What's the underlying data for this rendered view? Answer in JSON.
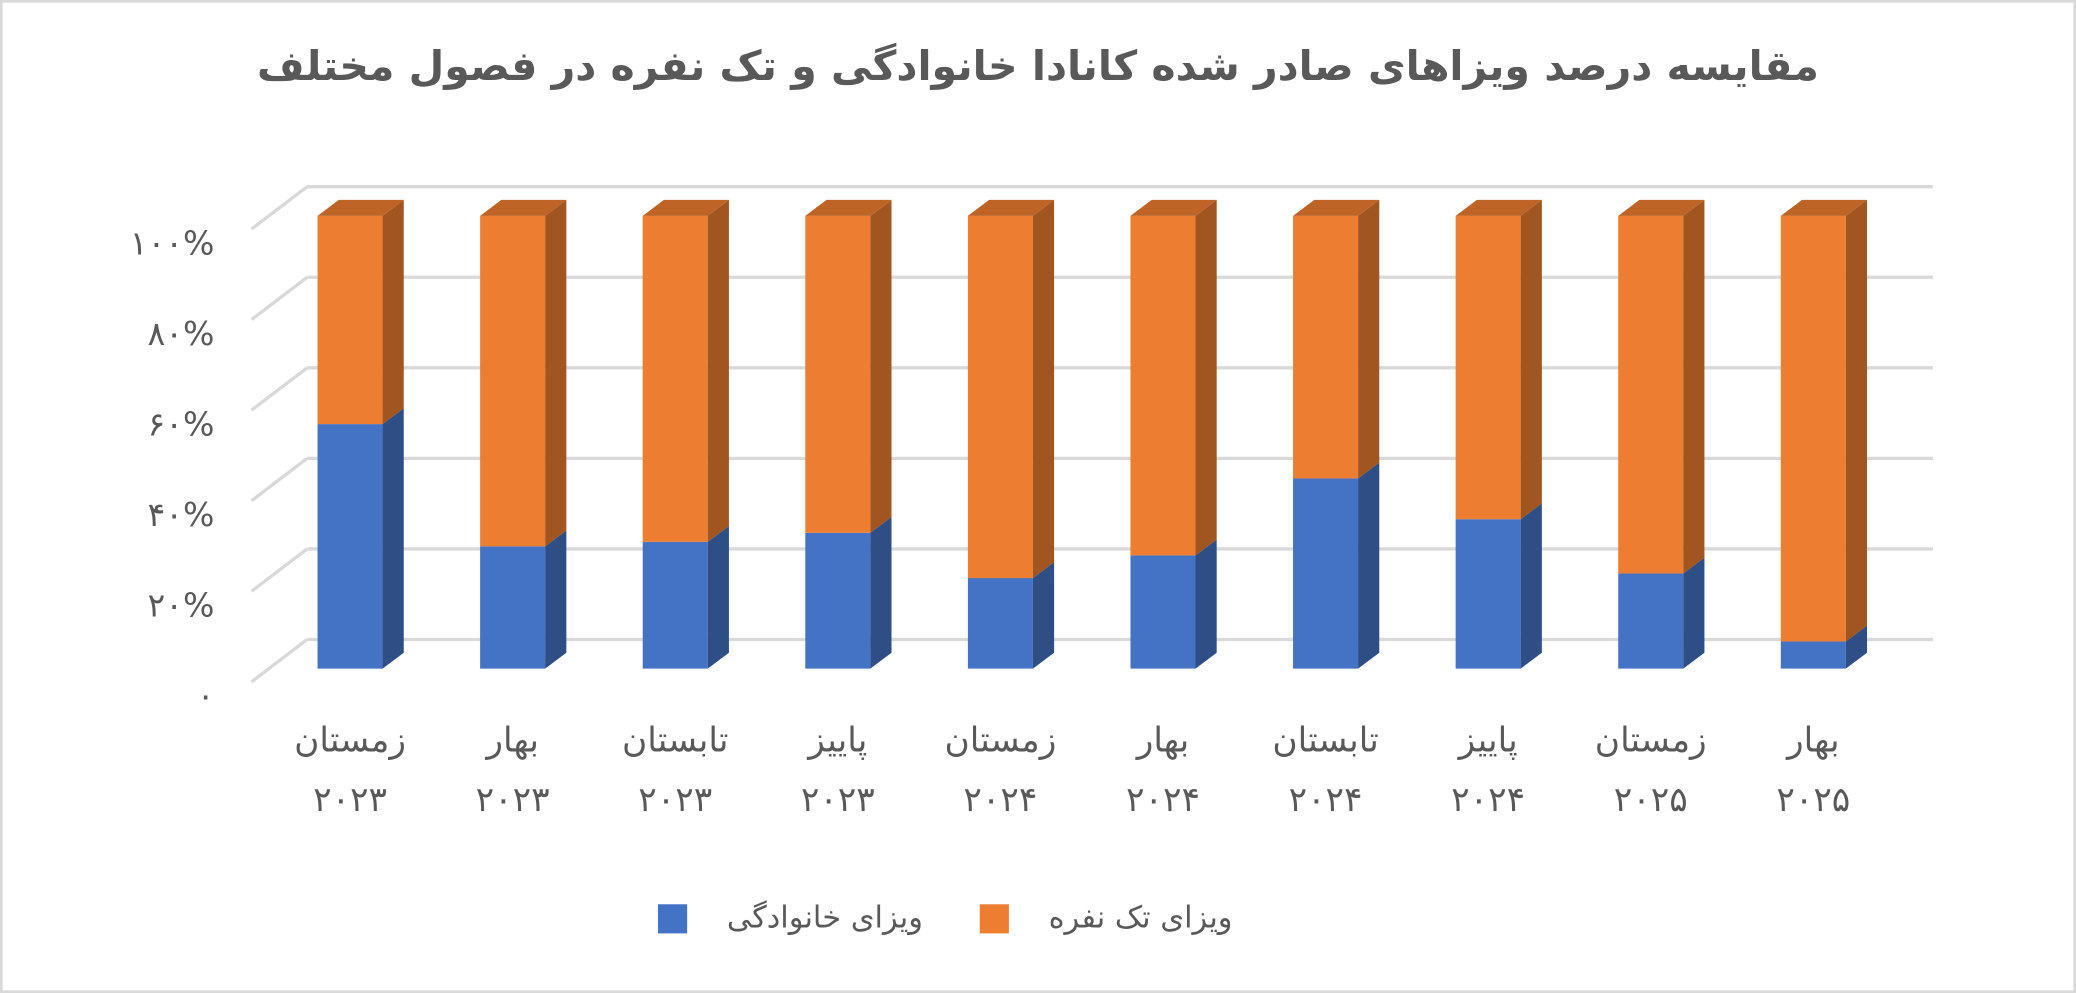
{
  "chart_data": {
    "type": "bar",
    "stacked": true,
    "title": "مقایسه درصد ویزاهای صادر شده کانادا خانوادگی و تک نفره در فصول مختلف",
    "categories": [
      "زمستان ۲۰۲۳",
      "بهار ۲۰۲۳",
      "تابستان ۲۰۲۳",
      "پاییز ۲۰۲۳",
      "زمستان ۲۰۲۴",
      "بهار ۲۰۲۴",
      "تابستان ۲۰۲۴",
      "پاییز ۲۰۲۴",
      "زمستان ۲۰۲۵",
      "بهار ۲۰۲۵"
    ],
    "series": [
      {
        "name": "ویزای خانوادگی",
        "color": "#4472c4",
        "values": [
          54,
          27,
          28,
          30,
          20,
          25,
          42,
          33,
          21,
          6
        ]
      },
      {
        "name": "ویزای تک نفره",
        "color": "#ed7d31",
        "values": [
          46,
          73,
          72,
          70,
          80,
          75,
          58,
          67,
          79,
          94
        ]
      }
    ],
    "ylim": [
      0,
      100
    ],
    "yticks": [
      {
        "value": 0,
        "label": "۰"
      },
      {
        "value": 20,
        "label": "۲۰%"
      },
      {
        "value": 40,
        "label": "۴۰%"
      },
      {
        "value": 60,
        "label": "۶۰%"
      },
      {
        "value": 80,
        "label": "۸۰%"
      },
      {
        "value": 100,
        "label": "۱۰۰%"
      }
    ],
    "grid": true,
    "legend": "bottom"
  }
}
